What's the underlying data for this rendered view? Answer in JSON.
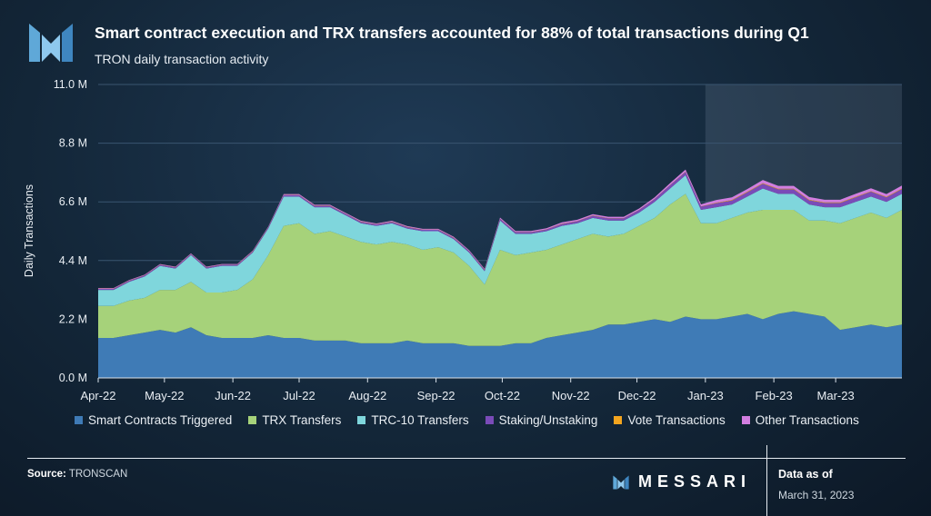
{
  "header": {
    "title": "Smart contract execution and TRX transfers accounted for 88% of total transactions during Q1",
    "subtitle": "TRON daily transaction activity"
  },
  "footer": {
    "source_label": "Source:",
    "source_value": "TRONSCAN",
    "brand": "MESSARI",
    "as_of_label": "Data as of",
    "as_of_date": "March 31, 2023"
  },
  "colors": {
    "smart_contracts": "#3f7bb6",
    "trx_transfers": "#a6d27a",
    "trc10_transfers": "#7fd6dc",
    "staking": "#7a4bb8",
    "vote": "#f4a51f",
    "other": "#d27ee0",
    "grid": "#3a5570",
    "highlight": "#9fb6cc"
  },
  "chart_data": {
    "type": "area",
    "stacked": true,
    "ylabel": "Daily Transactions",
    "yticks": [
      "0.0 M",
      "2.2 M",
      "4.4 M",
      "6.6 M",
      "8.8 M",
      "11.0 M"
    ],
    "ylim": [
      0,
      11
    ],
    "y_unit": "M",
    "xticks": [
      "Apr-22",
      "May-22",
      "Jun-22",
      "Jul-22",
      "Aug-22",
      "Sep-22",
      "Oct-22",
      "Nov-22",
      "Dec-22",
      "Jan-23",
      "Feb-23",
      "Mar-23"
    ],
    "x_range": [
      "2022-04-01",
      "2023-03-31"
    ],
    "highlight_range": [
      "2023-01-01",
      "2023-03-31"
    ],
    "legend": [
      "Smart Contracts Triggered",
      "TRX Transfers",
      "TRC-10 Transfers",
      "Staking/Unstaking",
      "Vote Transactions",
      "Other Transactions"
    ],
    "legend_position": "bottom",
    "grid": "horizontal",
    "sample_interval": "weekly",
    "dates": [
      "2022-04-01",
      "2022-04-08",
      "2022-04-15",
      "2022-04-22",
      "2022-04-29",
      "2022-05-06",
      "2022-05-13",
      "2022-05-20",
      "2022-05-27",
      "2022-06-03",
      "2022-06-10",
      "2022-06-17",
      "2022-06-24",
      "2022-07-01",
      "2022-07-08",
      "2022-07-15",
      "2022-07-22",
      "2022-07-29",
      "2022-08-05",
      "2022-08-12",
      "2022-08-19",
      "2022-08-26",
      "2022-09-02",
      "2022-09-09",
      "2022-09-16",
      "2022-09-23",
      "2022-09-30",
      "2022-10-07",
      "2022-10-14",
      "2022-10-21",
      "2022-10-28",
      "2022-11-04",
      "2022-11-11",
      "2022-11-18",
      "2022-11-25",
      "2022-12-02",
      "2022-12-09",
      "2022-12-16",
      "2022-12-23",
      "2022-12-30",
      "2023-01-06",
      "2023-01-13",
      "2023-01-20",
      "2023-01-27",
      "2023-02-03",
      "2023-02-10",
      "2023-02-17",
      "2023-02-24",
      "2023-03-03",
      "2023-03-10",
      "2023-03-17",
      "2023-03-24",
      "2023-03-31"
    ],
    "series": [
      {
        "name": "Smart Contracts Triggered",
        "color_key": "smart_contracts",
        "values": [
          1.5,
          1.5,
          1.6,
          1.7,
          1.8,
          1.7,
          1.9,
          1.6,
          1.5,
          1.5,
          1.5,
          1.6,
          1.5,
          1.5,
          1.4,
          1.4,
          1.4,
          1.3,
          1.3,
          1.3,
          1.4,
          1.3,
          1.3,
          1.3,
          1.2,
          1.2,
          1.2,
          1.3,
          1.3,
          1.5,
          1.6,
          1.7,
          1.8,
          2.0,
          2.0,
          2.1,
          2.2,
          2.1,
          2.3,
          2.2,
          2.2,
          2.3,
          2.4,
          2.2,
          2.4,
          2.5,
          2.4,
          2.3,
          1.8,
          1.9,
          2.0,
          1.9,
          2.0
        ]
      },
      {
        "name": "TRX Transfers",
        "color_key": "trx_transfers",
        "values": [
          1.2,
          1.2,
          1.3,
          1.3,
          1.5,
          1.6,
          1.7,
          1.6,
          1.7,
          1.8,
          2.2,
          3.0,
          4.2,
          4.3,
          4.0,
          4.1,
          3.9,
          3.8,
          3.7,
          3.8,
          3.6,
          3.5,
          3.6,
          3.4,
          3.0,
          2.3,
          3.6,
          3.3,
          3.4,
          3.3,
          3.4,
          3.5,
          3.6,
          3.3,
          3.4,
          3.6,
          3.8,
          4.4,
          4.6,
          3.6,
          3.6,
          3.7,
          3.8,
          4.1,
          3.9,
          3.8,
          3.5,
          3.6,
          4.0,
          4.1,
          4.2,
          4.1,
          4.3
        ]
      },
      {
        "name": "TRC-10 Transfers",
        "color_key": "trc10_transfers",
        "values": [
          0.6,
          0.6,
          0.7,
          0.8,
          0.9,
          0.8,
          1.0,
          0.9,
          1.0,
          0.9,
          1.0,
          1.0,
          1.1,
          1.0,
          1.0,
          0.9,
          0.8,
          0.7,
          0.7,
          0.7,
          0.6,
          0.7,
          0.6,
          0.5,
          0.5,
          0.5,
          1.1,
          0.8,
          0.7,
          0.7,
          0.7,
          0.6,
          0.6,
          0.6,
          0.5,
          0.5,
          0.6,
          0.6,
          0.7,
          0.5,
          0.6,
          0.5,
          0.6,
          0.8,
          0.6,
          0.6,
          0.6,
          0.5,
          0.6,
          0.6,
          0.6,
          0.6,
          0.6
        ]
      },
      {
        "name": "Staking/Unstaking",
        "color_key": "staking",
        "values": [
          0.04,
          0.04,
          0.04,
          0.04,
          0.04,
          0.04,
          0.04,
          0.04,
          0.04,
          0.04,
          0.04,
          0.04,
          0.05,
          0.05,
          0.05,
          0.05,
          0.05,
          0.05,
          0.05,
          0.05,
          0.05,
          0.05,
          0.05,
          0.05,
          0.05,
          0.05,
          0.06,
          0.06,
          0.06,
          0.06,
          0.07,
          0.07,
          0.08,
          0.08,
          0.08,
          0.09,
          0.1,
          0.12,
          0.12,
          0.12,
          0.15,
          0.15,
          0.16,
          0.18,
          0.17,
          0.17,
          0.16,
          0.16,
          0.16,
          0.17,
          0.18,
          0.17,
          0.18
        ]
      },
      {
        "name": "Vote Transactions",
        "color_key": "vote",
        "values": [
          0.01,
          0.01,
          0.01,
          0.01,
          0.01,
          0.01,
          0.01,
          0.01,
          0.01,
          0.01,
          0.01,
          0.01,
          0.01,
          0.01,
          0.01,
          0.01,
          0.01,
          0.01,
          0.01,
          0.01,
          0.01,
          0.01,
          0.01,
          0.01,
          0.01,
          0.01,
          0.01,
          0.01,
          0.01,
          0.01,
          0.01,
          0.01,
          0.01,
          0.01,
          0.01,
          0.01,
          0.01,
          0.01,
          0.01,
          0.01,
          0.02,
          0.02,
          0.02,
          0.02,
          0.02,
          0.02,
          0.02,
          0.02,
          0.02,
          0.02,
          0.02,
          0.02,
          0.02
        ]
      },
      {
        "name": "Other Transactions",
        "color_key": "other",
        "values": [
          0.02,
          0.02,
          0.02,
          0.02,
          0.02,
          0.02,
          0.02,
          0.02,
          0.02,
          0.02,
          0.02,
          0.02,
          0.03,
          0.03,
          0.03,
          0.03,
          0.03,
          0.03,
          0.03,
          0.03,
          0.03,
          0.03,
          0.03,
          0.03,
          0.03,
          0.03,
          0.04,
          0.04,
          0.04,
          0.04,
          0.05,
          0.05,
          0.05,
          0.05,
          0.05,
          0.05,
          0.06,
          0.07,
          0.08,
          0.08,
          0.1,
          0.1,
          0.1,
          0.12,
          0.11,
          0.11,
          0.1,
          0.1,
          0.1,
          0.11,
          0.11,
          0.1,
          0.11
        ]
      }
    ]
  }
}
